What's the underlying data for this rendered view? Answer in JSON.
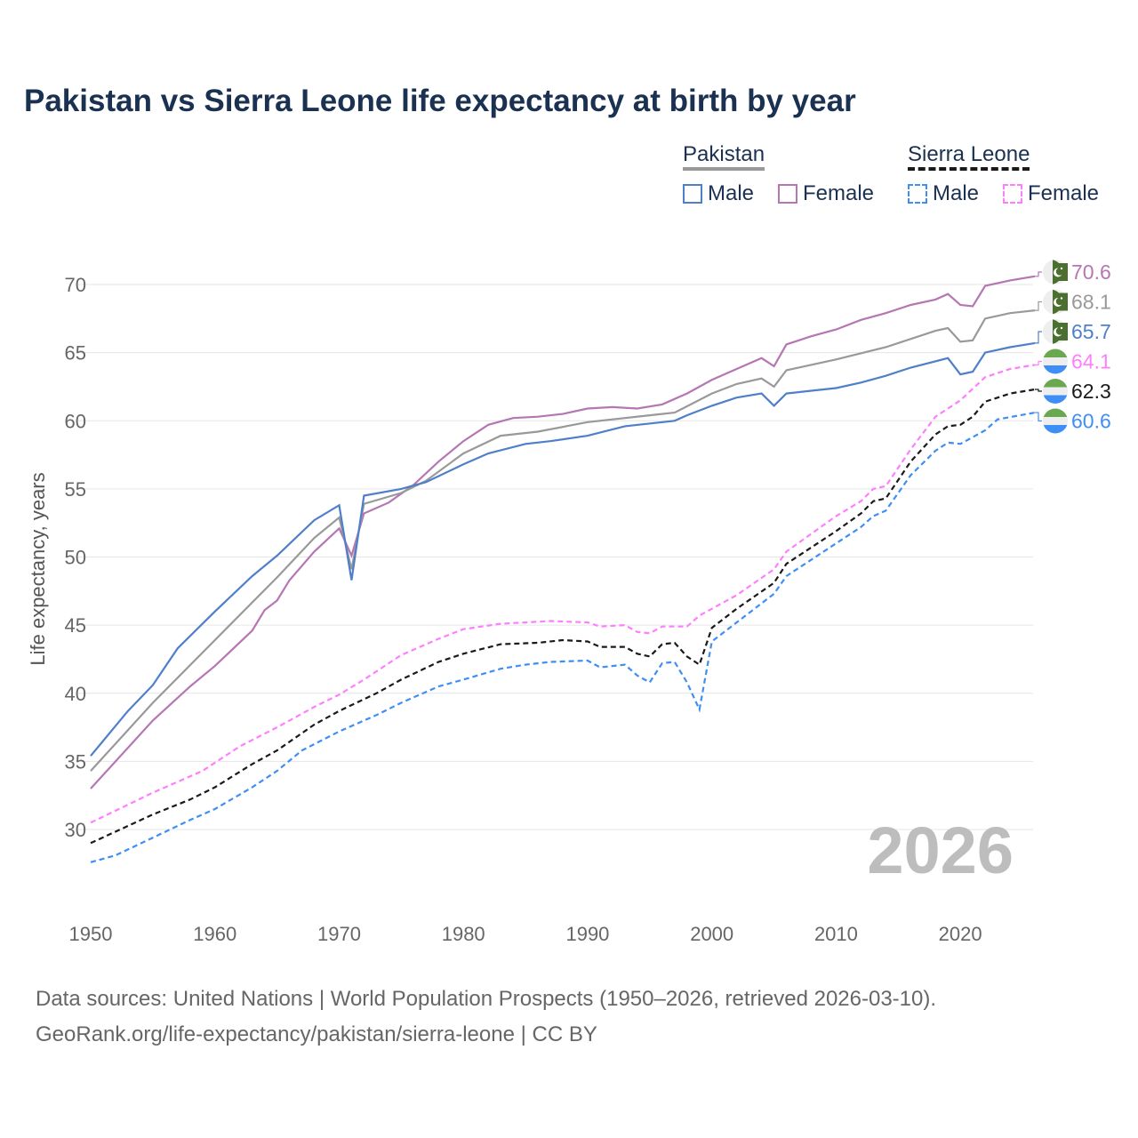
{
  "chart_data": {
    "type": "line",
    "title": "Pakistan vs Sierra Leone life expectancy at birth by year",
    "xlabel": "",
    "ylabel": "Life expectancy, years",
    "xlim": [
      1950,
      2026
    ],
    "ylim": [
      26,
      72
    ],
    "x_ticks": [
      "1950",
      "1960",
      "1970",
      "1980",
      "1990",
      "2000",
      "2010",
      "2020"
    ],
    "y_ticks": [
      "30",
      "35",
      "40",
      "45",
      "50",
      "55",
      "60",
      "65",
      "70"
    ],
    "grid": true,
    "year_watermark": "2026",
    "legend": {
      "placement": "top-right",
      "groups": [
        {
          "country": "Pakistan",
          "items": [
            "Male",
            "Female"
          ]
        },
        {
          "country": "Sierra Leone",
          "items": [
            "Male",
            "Female"
          ]
        }
      ]
    },
    "series": [
      {
        "name": "Pakistan Female",
        "color": "#b576b3",
        "dashed": false,
        "end_label": "70.6",
        "flag": "pakistan",
        "x": [
          1950,
          1955,
          1958,
          1960,
          1963,
          1964,
          1965,
          1966,
          1968,
          1970,
          1971,
          1972,
          1974,
          1976,
          1978,
          1980,
          1982,
          1984,
          1986,
          1988,
          1990,
          1992,
          1994,
          1996,
          1998,
          2000,
          2002,
          2004,
          2005,
          2006,
          2008,
          2010,
          2012,
          2014,
          2016,
          2018,
          2019,
          2020,
          2021,
          2022,
          2024,
          2026
        ],
        "y": [
          33.0,
          38.0,
          40.5,
          42.0,
          44.6,
          46.1,
          46.8,
          48.3,
          50.4,
          52.1,
          50.1,
          53.2,
          54.0,
          55.3,
          57.0,
          58.5,
          59.7,
          60.2,
          60.3,
          60.5,
          60.9,
          61.0,
          60.9,
          61.2,
          62.0,
          63.0,
          63.8,
          64.6,
          64.0,
          65.6,
          66.2,
          66.7,
          67.4,
          67.9,
          68.5,
          68.9,
          69.3,
          68.5,
          68.4,
          69.9,
          70.3,
          70.6
        ]
      },
      {
        "name": "Pakistan",
        "color": "#999999",
        "dashed": false,
        "end_label": "68.1",
        "flag": "pakistan",
        "x": [
          1950,
          1955,
          1960,
          1965,
          1968,
          1970,
          1971,
          1972,
          1975,
          1977,
          1980,
          1983,
          1986,
          1990,
          1995,
          1997,
          2000,
          2002,
          2004,
          2005,
          2006,
          2010,
          2014,
          2018,
          2019,
          2020,
          2021,
          2022,
          2024,
          2026
        ],
        "y": [
          34.3,
          39.3,
          43.9,
          48.5,
          51.4,
          52.9,
          49.1,
          53.9,
          54.7,
          55.6,
          57.6,
          58.9,
          59.2,
          59.9,
          60.4,
          60.6,
          62.0,
          62.7,
          63.1,
          62.5,
          63.7,
          64.5,
          65.4,
          66.6,
          66.8,
          65.8,
          65.9,
          67.5,
          67.9,
          68.1
        ]
      },
      {
        "name": "Pakistan Male",
        "color": "#4f7fc9",
        "dashed": false,
        "end_label": "65.7",
        "flag": "pakistan",
        "x": [
          1950,
          1953,
          1955,
          1957,
          1960,
          1963,
          1965,
          1968,
          1970,
          1971,
          1972,
          1975,
          1977,
          1980,
          1982,
          1985,
          1987,
          1990,
          1993,
          1997,
          1998,
          2000,
          2002,
          2004,
          2005,
          2006,
          2008,
          2010,
          2012,
          2014,
          2016,
          2019,
          2020,
          2021,
          2022,
          2024,
          2026
        ],
        "y": [
          35.4,
          38.7,
          40.6,
          43.3,
          46.0,
          48.6,
          50.1,
          52.7,
          53.8,
          48.3,
          54.5,
          55.0,
          55.5,
          56.8,
          57.6,
          58.3,
          58.5,
          58.9,
          59.6,
          60.0,
          60.4,
          61.1,
          61.7,
          62.0,
          61.1,
          62.0,
          62.2,
          62.4,
          62.8,
          63.3,
          63.9,
          64.6,
          63.4,
          63.6,
          65.0,
          65.4,
          65.7
        ]
      },
      {
        "name": "Sierra Leone Female",
        "color": "#ff7eff",
        "dashed": true,
        "end_label": "64.1",
        "flag": "sierra-leone",
        "x": [
          1950,
          1955,
          1959,
          1962,
          1965,
          1968,
          1970,
          1972,
          1975,
          1978,
          1980,
          1983,
          1985,
          1987,
          1990,
          1991,
          1993,
          1994,
          1995,
          1996,
          1998,
          1999,
          2002,
          2005,
          2006,
          2010,
          2012,
          2013,
          2014,
          2016,
          2018,
          2020,
          2022,
          2024,
          2026
        ],
        "y": [
          30.5,
          32.7,
          34.3,
          36.1,
          37.5,
          39.0,
          39.9,
          41.0,
          42.8,
          44.0,
          44.7,
          45.1,
          45.2,
          45.3,
          45.2,
          44.9,
          45.0,
          44.5,
          44.4,
          44.9,
          44.9,
          45.7,
          47.2,
          49.1,
          50.4,
          53.0,
          54.1,
          55.0,
          55.2,
          57.9,
          60.3,
          61.5,
          63.2,
          63.8,
          64.1
        ]
      },
      {
        "name": "Sierra Leone",
        "color": "#1a1a1a",
        "dashed": true,
        "end_label": "62.3",
        "flag": "sierra-leone",
        "x": [
          1950,
          1955,
          1958,
          1960,
          1963,
          1965,
          1968,
          1970,
          1973,
          1975,
          1978,
          1980,
          1983,
          1986,
          1988,
          1990,
          1991,
          1993,
          1994,
          1995,
          1996,
          1997,
          1998,
          1999,
          2000,
          2002,
          2005,
          2006,
          2010,
          2012,
          2013,
          2014,
          2016,
          2018,
          2019,
          2020,
          2021,
          2022,
          2024,
          2026
        ],
        "y": [
          29.0,
          31.1,
          32.2,
          33.1,
          34.8,
          35.8,
          37.7,
          38.7,
          40.0,
          41.0,
          42.3,
          42.9,
          43.6,
          43.7,
          43.9,
          43.8,
          43.4,
          43.4,
          42.9,
          42.7,
          43.6,
          43.7,
          42.7,
          42.1,
          44.8,
          46.2,
          48.1,
          49.5,
          51.9,
          53.2,
          54.1,
          54.3,
          57.0,
          59.0,
          59.6,
          59.7,
          60.3,
          61.4,
          62.0,
          62.3
        ]
      },
      {
        "name": "Sierra Leone Male",
        "color": "#3f8ef5",
        "dashed": true,
        "end_label": "60.6",
        "flag": "sierra-leone",
        "x": [
          1950,
          1952,
          1955,
          1958,
          1960,
          1963,
          1965,
          1967,
          1970,
          1973,
          1975,
          1978,
          1980,
          1983,
          1985,
          1987,
          1990,
          1991,
          1993,
          1994,
          1995,
          1996,
          1997,
          1998,
          1999,
          2000,
          2002,
          2005,
          2006,
          2010,
          2012,
          2013,
          2014,
          2016,
          2018,
          2019,
          2020,
          2022,
          2023,
          2026
        ],
        "y": [
          27.6,
          28.1,
          29.4,
          30.7,
          31.5,
          33.1,
          34.3,
          35.8,
          37.2,
          38.4,
          39.3,
          40.5,
          41.0,
          41.8,
          42.1,
          42.3,
          42.4,
          41.9,
          42.1,
          41.3,
          40.8,
          42.2,
          42.3,
          40.8,
          38.8,
          43.8,
          45.2,
          47.3,
          48.6,
          51.0,
          52.2,
          53.0,
          53.4,
          56.0,
          57.8,
          58.4,
          58.3,
          59.3,
          60.1,
          60.6
        ]
      }
    ]
  },
  "legend": {
    "pakistan": "Pakistan",
    "sierra_leone": "Sierra Leone",
    "male": "Male",
    "female": "Female"
  },
  "footer": {
    "line1": "Data sources: United Nations | World Population Prospects (1950–2026, retrieved 2026-03-10).",
    "line2": "GeoRank.org/life-expectancy/pakistan/sierra-leone | CC BY"
  }
}
